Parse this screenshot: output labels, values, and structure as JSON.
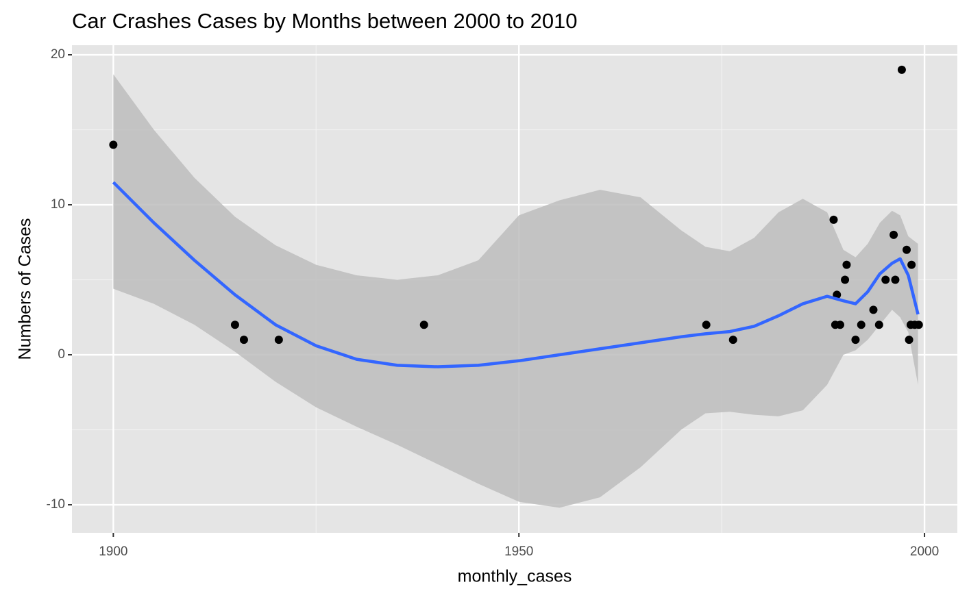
{
  "chart_data": {
    "type": "scatter",
    "title": "Car Crashes Cases by Months between 2000 to 2010",
    "x_label": "monthly_cases",
    "y_label": "Numbers of Cases",
    "xlim": [
      1894.9,
      2004.05
    ],
    "ylim": [
      -11.87,
      20.64
    ],
    "xticks": [
      1900,
      1950,
      2000
    ],
    "yticks": [
      -10,
      0,
      10,
      20
    ],
    "grid": true,
    "points": {
      "color": "#000000",
      "x": [
        1900,
        1915,
        1916.1,
        1920.4,
        1938.3,
        1973.1,
        1976.4,
        1988.8,
        1989.2,
        1989,
        1989.6,
        1990.2,
        1990.4,
        1991.5,
        1992.2,
        1993.7,
        1994.4,
        1995.2,
        1996.2,
        1996.4,
        1997.2,
        1997.8,
        1998.1,
        1998.3,
        1998.4,
        1998.8,
        1999.3
      ],
      "y": [
        14,
        2,
        1,
        1,
        2,
        2,
        1,
        9,
        4,
        2,
        2,
        5,
        6,
        1,
        2,
        3,
        2,
        5,
        8,
        5,
        19,
        7,
        1,
        2,
        6,
        2,
        2
      ]
    },
    "smooth": {
      "color": "#3366ff",
      "band_color": "#bdbdbd",
      "x": [
        1900,
        1905,
        1910,
        1915,
        1920,
        1925,
        1930,
        1935,
        1940,
        1945,
        1950,
        1955,
        1960,
        1965,
        1970,
        1973,
        1976,
        1979,
        1982,
        1985,
        1988,
        1990,
        1991.5,
        1993,
        1994.5,
        1996,
        1997,
        1998,
        1999.2
      ],
      "values": [
        11.5,
        8.8,
        6.3,
        4.0,
        2.0,
        0.6,
        -0.3,
        -0.7,
        -0.8,
        -0.7,
        -0.4,
        0.0,
        0.4,
        0.8,
        1.2,
        1.4,
        1.55,
        1.9,
        2.6,
        3.4,
        3.9,
        3.6,
        3.4,
        4.2,
        5.4,
        6.1,
        6.4,
        5.3,
        2.7
      ],
      "lower": [
        4.4,
        3.4,
        2.0,
        0.2,
        -1.8,
        -3.5,
        -4.8,
        -6.0,
        -7.3,
        -8.6,
        -9.8,
        -10.2,
        -9.5,
        -7.5,
        -5.0,
        -3.9,
        -3.8,
        -4.0,
        -4.1,
        -3.7,
        -2.0,
        0.0,
        0.3,
        1.0,
        2.0,
        3.0,
        2.5,
        1.5,
        -2.0
      ],
      "upper": [
        18.7,
        15.0,
        11.8,
        9.2,
        7.3,
        6.0,
        5.3,
        5.0,
        5.3,
        6.3,
        9.3,
        10.3,
        11.0,
        10.5,
        8.3,
        7.2,
        6.9,
        7.8,
        9.5,
        10.4,
        9.5,
        7.0,
        6.5,
        7.4,
        8.8,
        9.6,
        9.3,
        7.9,
        7.4
      ]
    }
  }
}
